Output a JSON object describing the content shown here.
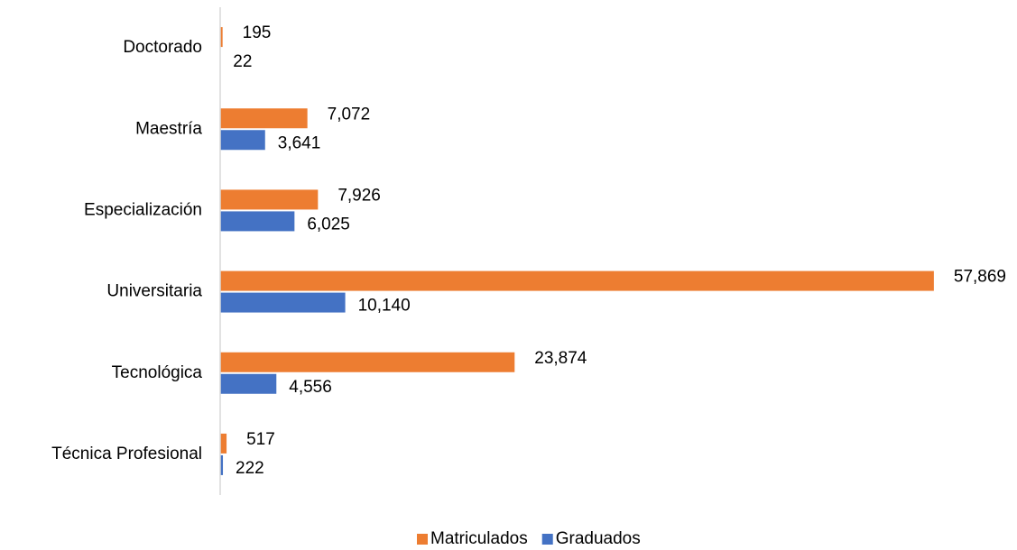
{
  "chart_data": {
    "type": "bar",
    "orientation": "horizontal",
    "categories": [
      "Doctorado",
      "Maestría",
      "Especialización",
      "Universitaria",
      "Tecnológica",
      "Técnica Profesional"
    ],
    "series": [
      {
        "name": "Matriculados",
        "color": "#ed7d31",
        "values": [
          195,
          7072,
          7926,
          57869,
          23874,
          517
        ],
        "value_labels": [
          "195",
          "7,072",
          "7,926",
          "57,869",
          "23,874",
          "517"
        ]
      },
      {
        "name": "Graduados",
        "color": "#4472c4",
        "values": [
          22,
          3641,
          6025,
          10140,
          4556,
          222
        ],
        "value_labels": [
          "22",
          "3,641",
          "6,025",
          "10,140",
          "4,556",
          "222"
        ]
      }
    ],
    "xlim": [
      0,
      60000
    ],
    "legend": "bottom"
  }
}
